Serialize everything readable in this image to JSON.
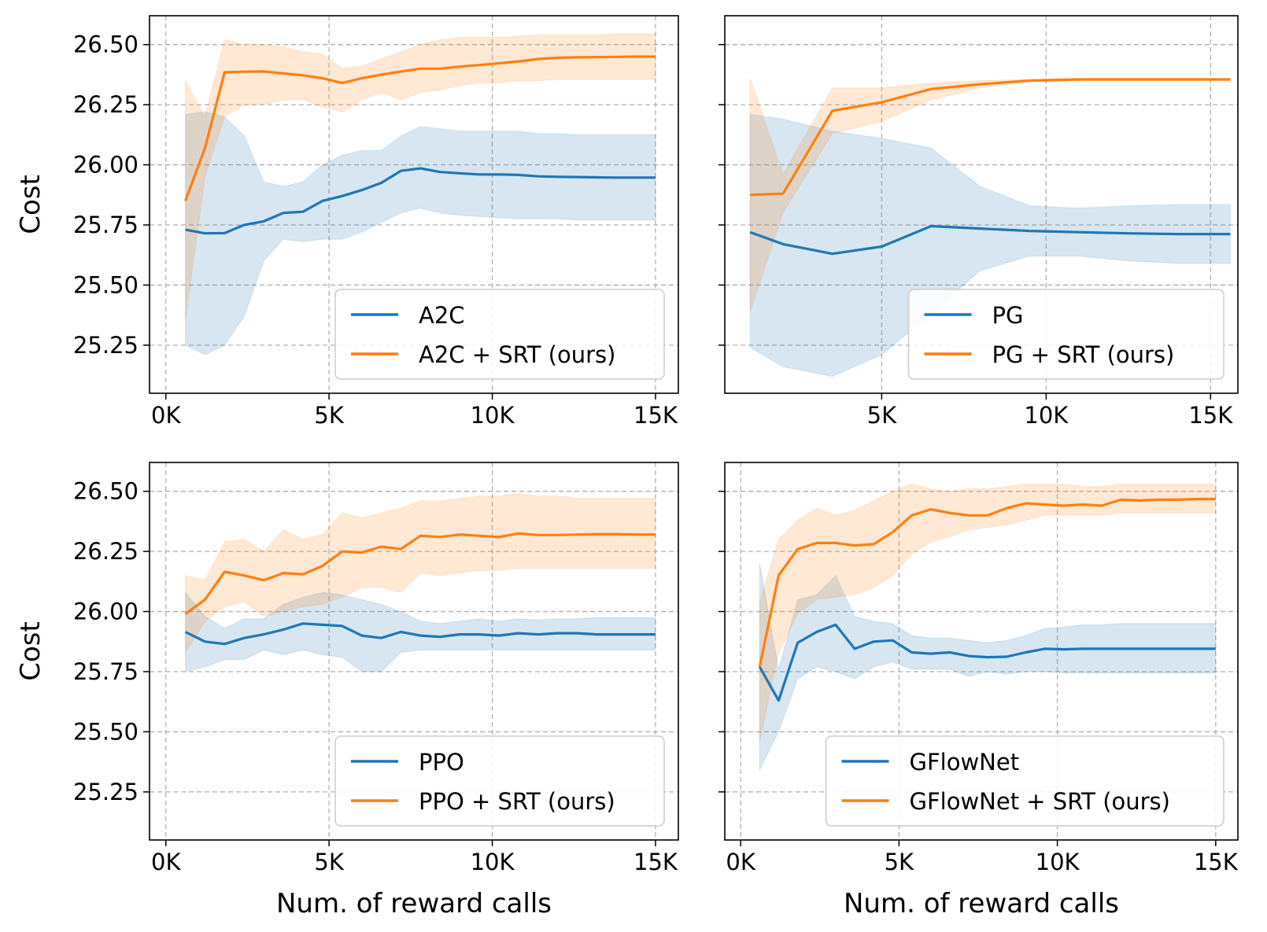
{
  "colors": {
    "blue": "#1f77b4",
    "orange": "#ff7f0e",
    "grid": "#b0b0b0"
  },
  "chart_data": [
    {
      "type": "line",
      "ylabel": "Cost",
      "xlabel": "",
      "xlim": [
        -500,
        15700
      ],
      "ylim": [
        25.05,
        26.62
      ],
      "xticks": [
        0,
        5000,
        10000,
        15000
      ],
      "xtick_labels": [
        "0K",
        "5K",
        "10K",
        "15K"
      ],
      "yticks": [
        25.25,
        25.5,
        25.75,
        26.0,
        26.25,
        26.5
      ],
      "ytick_labels": [
        "25.25",
        "25.50",
        "25.75",
        "26.00",
        "26.25",
        "26.50"
      ],
      "grid": true,
      "legend": "lower-right",
      "series": [
        {
          "name": "A2C",
          "color": "blue",
          "x": [
            600,
            1200,
            1800,
            2400,
            3000,
            3600,
            4200,
            4800,
            5400,
            6000,
            6600,
            7200,
            7800,
            8400,
            9000,
            9600,
            10200,
            10800,
            11400,
            12000,
            12600,
            13200,
            13800,
            14400,
            15000
          ],
          "y": [
            25.73,
            25.715,
            25.716,
            25.75,
            25.765,
            25.8,
            25.805,
            25.85,
            25.87,
            25.895,
            25.925,
            25.975,
            25.985,
            25.97,
            25.965,
            25.96,
            25.96,
            25.958,
            25.952,
            25.95,
            25.949,
            25.948,
            25.947,
            25.947,
            25.947
          ],
          "lower": [
            25.25,
            25.21,
            25.25,
            25.37,
            25.6,
            25.69,
            25.68,
            25.69,
            25.69,
            25.72,
            25.76,
            25.8,
            25.82,
            25.8,
            25.79,
            25.785,
            25.78,
            25.775,
            25.775,
            25.775,
            25.77,
            25.77,
            25.77,
            25.77,
            25.77
          ],
          "upper": [
            26.21,
            26.22,
            26.2,
            26.12,
            25.93,
            25.91,
            25.93,
            26.0,
            26.04,
            26.06,
            26.06,
            26.12,
            26.16,
            26.15,
            26.14,
            26.14,
            26.14,
            26.14,
            26.13,
            26.13,
            26.125,
            26.125,
            26.125,
            26.125,
            26.125
          ]
        },
        {
          "name": "A2C + SRT (ours)",
          "color": "orange",
          "x": [
            600,
            1200,
            1800,
            2400,
            3000,
            3600,
            4200,
            4800,
            5400,
            6000,
            6600,
            7200,
            7800,
            8400,
            9000,
            9600,
            10200,
            10800,
            11400,
            12000,
            12600,
            13200,
            13800,
            14400,
            15000
          ],
          "y": [
            25.85,
            26.07,
            26.385,
            26.387,
            26.388,
            26.38,
            26.372,
            26.36,
            26.34,
            26.36,
            26.375,
            26.388,
            26.4,
            26.4,
            26.408,
            26.415,
            26.422,
            26.43,
            26.44,
            26.445,
            26.447,
            26.448,
            26.449,
            26.45,
            26.45
          ],
          "lower": [
            25.35,
            25.95,
            26.2,
            26.25,
            26.25,
            26.27,
            26.27,
            26.24,
            26.22,
            26.27,
            26.3,
            26.27,
            26.3,
            26.31,
            26.33,
            26.34,
            26.34,
            26.35,
            26.35,
            26.355,
            26.355,
            26.355,
            26.355,
            26.355,
            26.355
          ],
          "upper": [
            26.35,
            26.2,
            26.52,
            26.5,
            26.5,
            26.49,
            26.47,
            26.46,
            26.4,
            26.41,
            26.44,
            26.47,
            26.5,
            26.52,
            26.53,
            26.53,
            26.53,
            26.535,
            26.54,
            26.54,
            26.54,
            26.54,
            26.545,
            26.545,
            26.545
          ]
        }
      ]
    },
    {
      "type": "line",
      "ylabel": "",
      "xlabel": "",
      "xlim": [
        230,
        15830
      ],
      "ylim": [
        25.05,
        26.62
      ],
      "xticks": [
        5000,
        10000,
        15000
      ],
      "xtick_labels": [
        "5K",
        "10K",
        "15K"
      ],
      "yticks": [
        25.25,
        25.5,
        25.75,
        26.0,
        26.25,
        26.5
      ],
      "ytick_labels": [],
      "grid": true,
      "legend": "lower-right",
      "series": [
        {
          "name": "PG",
          "color": "blue",
          "x": [
            1000,
            2000,
            3500,
            5000,
            6500,
            8000,
            9500,
            11000,
            12500,
            14000,
            15600
          ],
          "y": [
            25.72,
            25.67,
            25.63,
            25.66,
            25.745,
            25.735,
            25.725,
            25.72,
            25.715,
            25.712,
            25.712
          ],
          "lower": [
            25.24,
            25.16,
            25.12,
            25.21,
            25.38,
            25.56,
            25.62,
            25.62,
            25.6,
            25.59,
            25.59
          ],
          "upper": [
            26.21,
            26.19,
            26.14,
            26.11,
            26.07,
            25.91,
            25.83,
            25.82,
            25.83,
            25.835,
            25.835
          ]
        },
        {
          "name": "PG + SRT (ours)",
          "color": "orange",
          "x": [
            1000,
            2000,
            3500,
            5000,
            6500,
            8000,
            9500,
            11000,
            12500,
            14000,
            15600
          ],
          "y": [
            25.875,
            25.88,
            26.225,
            26.26,
            26.315,
            26.335,
            26.35,
            26.355,
            26.355,
            26.355,
            26.355
          ],
          "lower": [
            25.39,
            25.8,
            26.13,
            26.18,
            26.27,
            26.32,
            26.345,
            26.35,
            26.35,
            26.35,
            26.35
          ],
          "upper": [
            26.36,
            25.96,
            26.32,
            26.32,
            26.34,
            26.35,
            26.355,
            26.36,
            26.36,
            26.36,
            26.36
          ]
        }
      ]
    },
    {
      "type": "line",
      "ylabel": "Cost",
      "xlabel": "Num. of reward calls",
      "xlim": [
        -500,
        15700
      ],
      "ylim": [
        25.05,
        26.62
      ],
      "xticks": [
        0,
        5000,
        10000,
        15000
      ],
      "xtick_labels": [
        "0K",
        "5K",
        "10K",
        "15K"
      ],
      "yticks": [
        25.25,
        25.5,
        25.75,
        26.0,
        26.25,
        26.5
      ],
      "ytick_labels": [
        "25.25",
        "25.50",
        "25.75",
        "26.00",
        "26.25",
        "26.50"
      ],
      "grid": true,
      "legend": "lower-right",
      "series": [
        {
          "name": "PPO",
          "color": "blue",
          "x": [
            600,
            1200,
            1800,
            2400,
            3000,
            3600,
            4200,
            4800,
            5400,
            6000,
            6600,
            7200,
            7800,
            8400,
            9000,
            9600,
            10200,
            10800,
            11400,
            12000,
            12600,
            13200,
            13800,
            14400,
            15000
          ],
          "y": [
            25.915,
            25.875,
            25.865,
            25.89,
            25.905,
            25.925,
            25.95,
            25.945,
            25.94,
            25.9,
            25.89,
            25.915,
            25.9,
            25.895,
            25.905,
            25.905,
            25.9,
            25.91,
            25.905,
            25.91,
            25.91,
            25.905,
            25.905,
            25.905,
            25.905
          ],
          "lower": [
            25.75,
            25.77,
            25.8,
            25.8,
            25.84,
            25.82,
            25.84,
            25.82,
            25.81,
            25.75,
            25.75,
            25.83,
            25.84,
            25.84,
            25.84,
            25.84,
            25.84,
            25.84,
            25.84,
            25.84,
            25.84,
            25.84,
            25.84,
            25.84,
            25.84
          ],
          "upper": [
            26.08,
            25.98,
            25.93,
            25.97,
            25.97,
            26.03,
            26.06,
            26.08,
            26.07,
            26.05,
            26.03,
            26.0,
            25.96,
            25.95,
            25.96,
            25.97,
            25.96,
            25.97,
            25.965,
            25.97,
            25.97,
            25.975,
            25.975,
            25.975,
            25.975
          ]
        },
        {
          "name": "PPO + SRT (ours)",
          "color": "orange",
          "x": [
            600,
            1200,
            1800,
            2400,
            3000,
            3600,
            4200,
            4800,
            5400,
            6000,
            6600,
            7200,
            7800,
            8400,
            9000,
            9600,
            10200,
            10800,
            11400,
            12000,
            12600,
            13200,
            13800,
            14400,
            15000
          ],
          "y": [
            25.99,
            26.05,
            26.165,
            26.15,
            26.13,
            26.16,
            26.155,
            26.19,
            26.25,
            26.245,
            26.27,
            26.26,
            26.315,
            26.31,
            26.32,
            26.315,
            26.31,
            26.325,
            26.318,
            26.318,
            26.32,
            26.322,
            26.322,
            26.32,
            26.32
          ],
          "lower": [
            25.83,
            25.96,
            26.02,
            26.04,
            25.98,
            26.0,
            26.02,
            26.03,
            26.06,
            26.1,
            26.1,
            26.08,
            26.16,
            26.15,
            26.16,
            26.17,
            26.17,
            26.18,
            26.18,
            26.18,
            26.18,
            26.18,
            26.18,
            26.18,
            26.18
          ],
          "upper": [
            26.15,
            26.13,
            26.29,
            26.3,
            26.25,
            26.34,
            26.3,
            26.32,
            26.41,
            26.39,
            26.41,
            26.43,
            26.46,
            26.46,
            26.47,
            26.48,
            26.48,
            26.49,
            26.48,
            26.48,
            26.47,
            26.47,
            26.47,
            26.47,
            26.47
          ]
        }
      ]
    },
    {
      "type": "line",
      "ylabel": "",
      "xlabel": "Num. of reward calls",
      "xlim": [
        -500,
        15700
      ],
      "ylim": [
        25.05,
        26.62
      ],
      "xticks": [
        0,
        5000,
        10000,
        15000
      ],
      "xtick_labels": [
        "0K",
        "5K",
        "10K",
        "15K"
      ],
      "yticks": [
        25.25,
        25.5,
        25.75,
        26.0,
        26.25,
        26.5
      ],
      "ytick_labels": [],
      "grid": true,
      "legend": "lower-right",
      "series": [
        {
          "name": "GFlowNet",
          "color": "blue",
          "x": [
            600,
            1200,
            1800,
            2400,
            3000,
            3600,
            4200,
            4800,
            5400,
            6000,
            6600,
            7200,
            7800,
            8400,
            9000,
            9600,
            10200,
            10800,
            11400,
            12000,
            12600,
            13200,
            13800,
            14400,
            15000
          ],
          "y": [
            25.77,
            25.63,
            25.87,
            25.915,
            25.945,
            25.845,
            25.875,
            25.88,
            25.83,
            25.825,
            25.83,
            25.815,
            25.81,
            25.812,
            25.83,
            25.845,
            25.843,
            25.845,
            25.845,
            25.845,
            25.845,
            25.845,
            25.845,
            25.845,
            25.845
          ],
          "lower": [
            25.34,
            25.5,
            25.72,
            25.77,
            25.75,
            25.72,
            25.77,
            25.79,
            25.76,
            25.76,
            25.76,
            25.73,
            25.75,
            25.74,
            25.75,
            25.75,
            25.745,
            25.745,
            25.745,
            25.745,
            25.745,
            25.745,
            25.745,
            25.745,
            25.745
          ],
          "upper": [
            26.2,
            25.76,
            26.05,
            26.07,
            26.15,
            25.98,
            25.96,
            25.95,
            25.9,
            25.89,
            25.89,
            25.88,
            25.87,
            25.88,
            25.9,
            25.93,
            25.935,
            25.945,
            25.945,
            25.95,
            25.95,
            25.95,
            25.95,
            25.95,
            25.95
          ]
        },
        {
          "name": "GFlowNet + SRT (ours)",
          "color": "orange",
          "x": [
            600,
            1200,
            1800,
            2400,
            3000,
            3600,
            4200,
            4800,
            5400,
            6000,
            6600,
            7200,
            7800,
            8400,
            9000,
            9600,
            10200,
            10800,
            11400,
            12000,
            12600,
            13200,
            13800,
            14400,
            15000
          ],
          "y": [
            25.77,
            26.15,
            26.26,
            26.285,
            26.285,
            26.275,
            26.28,
            26.33,
            26.4,
            26.425,
            26.41,
            26.4,
            26.4,
            26.43,
            26.45,
            26.445,
            26.44,
            26.445,
            26.44,
            26.465,
            26.462,
            26.465,
            26.465,
            26.468,
            26.468
          ],
          "lower": [
            25.46,
            25.83,
            25.99,
            26.05,
            26.06,
            26.07,
            26.1,
            26.15,
            26.24,
            26.29,
            26.31,
            26.34,
            26.35,
            26.36,
            26.38,
            26.4,
            26.4,
            26.4,
            26.4,
            26.41,
            26.41,
            26.41,
            26.41,
            26.41,
            26.41
          ],
          "upper": [
            26.04,
            26.3,
            26.38,
            26.43,
            26.4,
            26.42,
            26.46,
            26.5,
            26.53,
            26.51,
            26.5,
            26.51,
            26.51,
            26.52,
            26.53,
            26.53,
            26.53,
            26.52,
            26.52,
            26.53,
            26.53,
            26.53,
            26.53,
            26.53,
            26.53
          ]
        }
      ]
    }
  ]
}
